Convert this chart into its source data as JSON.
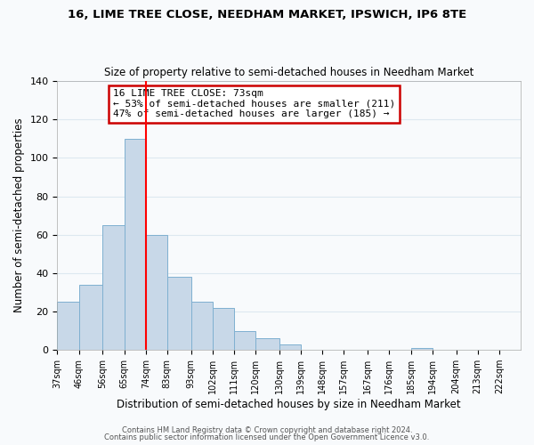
{
  "title1": "16, LIME TREE CLOSE, NEEDHAM MARKET, IPSWICH, IP6 8TE",
  "title2": "Size of property relative to semi-detached houses in Needham Market",
  "xlabel": "Distribution of semi-detached houses by size in Needham Market",
  "ylabel": "Number of semi-detached properties",
  "bar_heights": [
    25,
    34,
    65,
    110,
    60,
    38,
    25,
    22,
    10,
    6,
    3,
    0,
    0,
    0,
    0,
    0,
    1,
    0,
    0
  ],
  "bar_left_edges": [
    37,
    46,
    56,
    65,
    74,
    83,
    93,
    102,
    111,
    120,
    130,
    139,
    148,
    157,
    167,
    176,
    185,
    194,
    204
  ],
  "bar_widths": [
    9,
    10,
    9,
    9,
    9,
    10,
    9,
    9,
    9,
    10,
    9,
    9,
    9,
    10,
    9,
    9,
    9,
    10,
    9
  ],
  "bar_color": "#c8d8e8",
  "bar_edge_color": "#7fb0d0",
  "red_line_x": 74,
  "ylim": [
    0,
    140
  ],
  "yticks": [
    0,
    20,
    40,
    60,
    80,
    100,
    120,
    140
  ],
  "xtick_labels": [
    "37sqm",
    "46sqm",
    "56sqm",
    "65sqm",
    "74sqm",
    "83sqm",
    "93sqm",
    "102sqm",
    "111sqm",
    "120sqm",
    "130sqm",
    "139sqm",
    "148sqm",
    "157sqm",
    "167sqm",
    "176sqm",
    "185sqm",
    "194sqm",
    "204sqm",
    "213sqm",
    "222sqm"
  ],
  "xtick_positions": [
    37,
    46,
    56,
    65,
    74,
    83,
    93,
    102,
    111,
    120,
    130,
    139,
    148,
    157,
    167,
    176,
    185,
    194,
    204,
    213,
    222
  ],
  "annotation_title": "16 LIME TREE CLOSE: 73sqm",
  "annotation_line1": "← 53% of semi-detached houses are smaller (211)",
  "annotation_line2": "47% of semi-detached houses are larger (185) →",
  "annotation_box_color": "#ffffff",
  "annotation_box_edge": "#cc0000",
  "footer1": "Contains HM Land Registry data © Crown copyright and database right 2024.",
  "footer2": "Contains public sector information licensed under the Open Government Licence v3.0.",
  "grid_color": "#dde8f0",
  "background_color": "#f8fafc",
  "title1_fontsize": 9.5,
  "title2_fontsize": 8.5,
  "xlabel_fontsize": 8.5,
  "ylabel_fontsize": 8.5,
  "annotation_fontsize": 8.0,
  "footer_fontsize": 6.0,
  "xtick_fontsize": 7.0,
  "ytick_fontsize": 8.0
}
